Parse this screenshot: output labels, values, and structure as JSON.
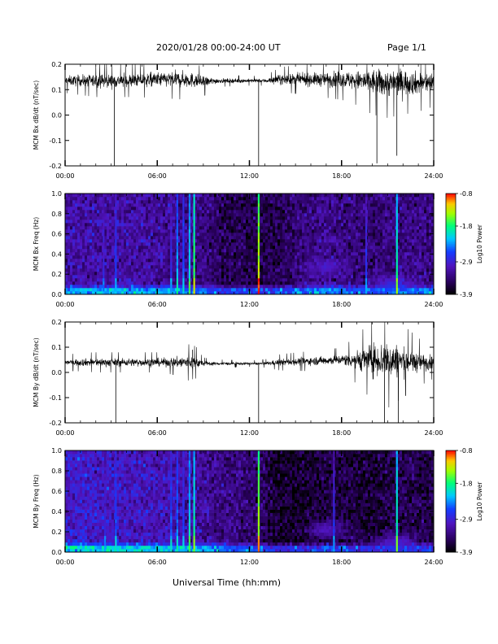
{
  "header": {
    "title": "2020/01/28  00:00-24:00 UT",
    "page": "Page 1/1"
  },
  "xlabel": "Universal Time (hh:mm)",
  "chart_data": [
    {
      "type": "line",
      "ylabel": "MCM Bx dB/dt (nT/sec)",
      "xlim": [
        "00:00",
        "24:00"
      ],
      "ylim": [
        -0.2,
        0.2
      ],
      "xticks": [
        "00:00",
        "06:00",
        "12:00",
        "18:00",
        "24:00"
      ],
      "yticks": [
        "0.2",
        "0.1",
        "0.0",
        "-0.1",
        "-0.2"
      ],
      "ytick_values": [
        0.2,
        0.1,
        0.0,
        -0.1,
        -0.2
      ],
      "envelope": {
        "hours": [
          0,
          2,
          4,
          6,
          8,
          9,
          10,
          12,
          13,
          14,
          16,
          18,
          19,
          20,
          21,
          22,
          23,
          24
        ],
        "center": [
          0.135,
          0.135,
          0.135,
          0.14,
          0.14,
          0.13,
          0.135,
          0.135,
          0.135,
          0.14,
          0.14,
          0.14,
          0.135,
          0.13,
          0.125,
          0.13,
          0.125,
          0.13
        ],
        "amplitude": [
          0.03,
          0.04,
          0.04,
          0.045,
          0.05,
          0.035,
          0.015,
          0.012,
          0.012,
          0.03,
          0.04,
          0.05,
          0.06,
          0.08,
          0.085,
          0.08,
          0.07,
          0.06
        ]
      },
      "spikes": [
        {
          "hour": 3.2,
          "value": -0.2
        },
        {
          "hour": 12.6,
          "value": -0.2
        },
        {
          "hour": 20.3,
          "value": -0.19
        },
        {
          "hour": 21.6,
          "value": -0.16
        }
      ]
    },
    {
      "type": "heatmap",
      "ylabel": "MCM Bx Freq (Hz)",
      "xlim": [
        "00:00",
        "24:00"
      ],
      "ylim": [
        0.0,
        1.0
      ],
      "xticks": [
        "00:00",
        "06:00",
        "12:00",
        "18:00",
        "24:00"
      ],
      "yticks": [
        "1.0",
        "0.8",
        "0.6",
        "0.4",
        "0.2",
        "0.0"
      ],
      "ytick_values": [
        1.0,
        0.8,
        0.6,
        0.4,
        0.2,
        0.0
      ],
      "colorbar": {
        "label": "Log10 Power",
        "ticks": [
          "-0.8",
          "-1.8",
          "-2.9",
          "-3.9"
        ],
        "tick_values": [
          -0.8,
          -1.8,
          -2.9,
          -3.9
        ],
        "min": -3.9,
        "max": -0.8
      },
      "vertical_lines": [
        {
          "hour": 2.5,
          "level": -2.7
        },
        {
          "hour": 3.3,
          "level": -2.5
        },
        {
          "hour": 6.9,
          "level": -2.6
        },
        {
          "hour": 7.3,
          "level": -2.2
        },
        {
          "hour": 7.7,
          "level": -2.4
        },
        {
          "hour": 8.1,
          "level": -2.0
        },
        {
          "hour": 8.4,
          "level": -1.6
        },
        {
          "hour": 12.6,
          "level": -1.2
        },
        {
          "hour": 19.6,
          "level": -2.6
        },
        {
          "hour": 21.6,
          "level": -1.8
        }
      ],
      "background": {
        "hours": [
          0,
          3,
          6,
          9,
          10,
          12,
          14,
          15,
          17,
          18,
          20,
          22,
          24
        ],
        "level": [
          -3.15,
          -3.15,
          -3.2,
          -3.3,
          -3.5,
          -3.6,
          -3.55,
          -3.4,
          -3.25,
          -3.35,
          -3.4,
          -3.3,
          -3.3
        ]
      },
      "patches": [
        {
          "hour": 17.0,
          "freq": 0.27,
          "level": -2.9
        },
        {
          "hour": 21.3,
          "freq": 0.1,
          "level": -2.7
        }
      ]
    },
    {
      "type": "line",
      "ylabel": "MCM By dB/dt (nT/sec)",
      "xlim": [
        "00:00",
        "24:00"
      ],
      "ylim": [
        -0.2,
        0.2
      ],
      "xticks": [
        "00:00",
        "06:00",
        "12:00",
        "18:00",
        "24:00"
      ],
      "yticks": [
        "0.2",
        "0.1",
        "0.0",
        "-0.1",
        "-0.2"
      ],
      "ytick_values": [
        0.2,
        0.1,
        0.0,
        -0.1,
        -0.2
      ],
      "envelope": {
        "hours": [
          0,
          2,
          4,
          6,
          7,
          8,
          8.5,
          9,
          10,
          12,
          13,
          14,
          16,
          18,
          19,
          20,
          21,
          22,
          23,
          24
        ],
        "center": [
          0.04,
          0.04,
          0.04,
          0.04,
          0.04,
          0.04,
          0.04,
          0.035,
          0.035,
          0.035,
          0.035,
          0.04,
          0.045,
          0.05,
          0.05,
          0.05,
          0.05,
          0.045,
          0.04,
          0.04
        ],
        "amplitude": [
          0.02,
          0.025,
          0.025,
          0.025,
          0.03,
          0.045,
          0.04,
          0.015,
          0.01,
          0.008,
          0.01,
          0.02,
          0.025,
          0.03,
          0.06,
          0.1,
          0.12,
          0.09,
          0.06,
          0.04
        ]
      },
      "spikes": [
        {
          "hour": 3.3,
          "value": -0.2
        },
        {
          "hour": 8.3,
          "value": 0.09
        },
        {
          "hour": 12.6,
          "value": -0.2
        },
        {
          "hour": 20.8,
          "value": -0.2
        },
        {
          "hour": 21.7,
          "value": -0.2
        }
      ]
    },
    {
      "type": "heatmap",
      "ylabel": "MCM By Freq (Hz)",
      "xlim": [
        "00:00",
        "24:00"
      ],
      "ylim": [
        0.0,
        1.0
      ],
      "xticks": [
        "00:00",
        "06:00",
        "12:00",
        "18:00",
        "24:00"
      ],
      "yticks": [
        "1.0",
        "0.8",
        "0.6",
        "0.4",
        "0.2",
        "0.0"
      ],
      "ytick_values": [
        1.0,
        0.8,
        0.6,
        0.4,
        0.2,
        0.0
      ],
      "colorbar": {
        "label": "Log10 Power",
        "ticks": [
          "-0.8",
          "-1.8",
          "-2.9",
          "-3.9"
        ],
        "tick_values": [
          -0.8,
          -1.8,
          -2.9,
          -3.9
        ],
        "min": -3.9,
        "max": -0.8
      },
      "vertical_lines": [
        {
          "hour": 2.6,
          "level": -2.7
        },
        {
          "hour": 3.3,
          "level": -2.4
        },
        {
          "hour": 6.9,
          "level": -2.4
        },
        {
          "hour": 7.3,
          "level": -2.3
        },
        {
          "hour": 7.7,
          "level": -2.5
        },
        {
          "hour": 8.1,
          "level": -2.0
        },
        {
          "hour": 8.4,
          "level": -1.8
        },
        {
          "hour": 12.6,
          "level": -1.3
        },
        {
          "hour": 17.5,
          "level": -2.6
        },
        {
          "hour": 21.6,
          "level": -1.8
        }
      ],
      "background": {
        "hours": [
          0,
          3,
          6,
          9,
          10,
          12,
          13,
          14,
          15,
          17,
          18,
          20,
          22,
          24
        ],
        "level": [
          -2.95,
          -3.0,
          -3.05,
          -3.2,
          -3.3,
          -3.4,
          -3.5,
          -3.75,
          -3.75,
          -3.6,
          -3.6,
          -3.7,
          -3.55,
          -3.6
        ]
      },
      "patches": [
        {
          "hour": 17.0,
          "freq": 0.22,
          "level": -2.9
        },
        {
          "hour": 21.6,
          "freq": 0.1,
          "level": -2.8
        }
      ]
    }
  ]
}
